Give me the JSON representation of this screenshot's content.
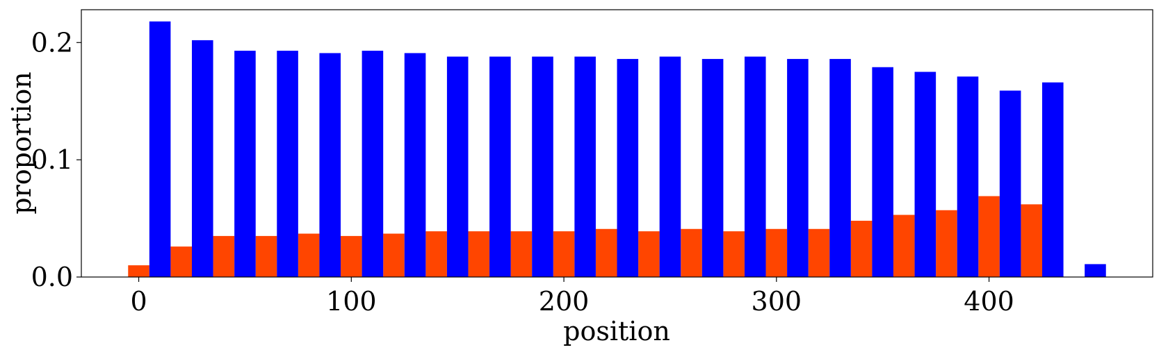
{
  "chart_data": {
    "type": "bar",
    "xlabel": "position",
    "ylabel": "proportion",
    "xlim": [
      -27,
      477
    ],
    "ylim": [
      0,
      0.228
    ],
    "xticks": [
      0,
      100,
      200,
      300,
      400
    ],
    "xtick_labels": [
      "0",
      "100",
      "200",
      "300",
      "400"
    ],
    "yticks": [
      0,
      0.1,
      0.2
    ],
    "ytick_labels": [
      "0.0",
      "0.1",
      "0.2"
    ],
    "grid": false,
    "bar_width": 10,
    "series": [
      {
        "color": "#ff4500",
        "x": [
          0,
          20,
          40,
          60,
          80,
          100,
          120,
          140,
          160,
          180,
          200,
          220,
          240,
          260,
          280,
          300,
          320,
          340,
          360,
          380,
          400,
          420,
          440
        ],
        "values": [
          0.01,
          0.026,
          0.035,
          0.035,
          0.037,
          0.035,
          0.037,
          0.039,
          0.039,
          0.039,
          0.039,
          0.041,
          0.039,
          0.041,
          0.039,
          0.041,
          0.041,
          0.048,
          0.053,
          0.057,
          0.069,
          0.062,
          0.0
        ]
      },
      {
        "color": "#0000ff",
        "x": [
          10,
          30,
          50,
          70,
          90,
          110,
          130,
          150,
          170,
          190,
          210,
          230,
          250,
          270,
          290,
          310,
          330,
          350,
          370,
          390,
          410,
          430,
          450
        ],
        "values": [
          0.218,
          0.202,
          0.193,
          0.193,
          0.191,
          0.193,
          0.191,
          0.188,
          0.188,
          0.188,
          0.188,
          0.186,
          0.188,
          0.186,
          0.188,
          0.186,
          0.186,
          0.179,
          0.175,
          0.171,
          0.159,
          0.166,
          0.011
        ]
      }
    ]
  }
}
